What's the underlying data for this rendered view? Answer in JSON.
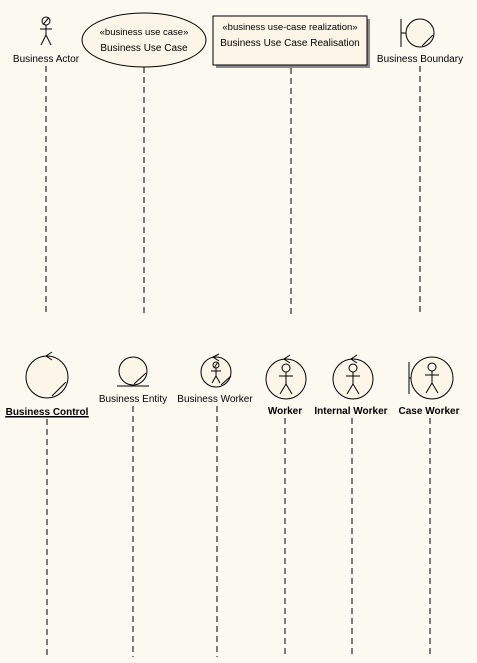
{
  "colors": {
    "background": "#fcf9f0",
    "fill": "#fdf6e8",
    "line": "#000000"
  },
  "lifelines": [
    {
      "id": "business-actor",
      "label": "Business Actor",
      "icon": "business-actor-icon"
    },
    {
      "id": "business-use-case",
      "label": "Business Use Case",
      "stereotype": "«business use case»",
      "icon": "use-case-ellipse"
    },
    {
      "id": "business-use-case-realisation",
      "label": "Business Use Case Realisation",
      "stereotype": "«business use-case realization»",
      "icon": "realization-box"
    },
    {
      "id": "business-boundary",
      "label": "Business Boundary",
      "icon": "business-boundary-icon"
    },
    {
      "id": "business-control",
      "label": "Business Control",
      "icon": "business-control-icon"
    },
    {
      "id": "business-entity",
      "label": "Business Entity",
      "icon": "business-entity-icon"
    },
    {
      "id": "business-worker",
      "label": "Business Worker",
      "icon": "business-worker-icon"
    },
    {
      "id": "worker",
      "label": "Worker",
      "icon": "worker-icon"
    },
    {
      "id": "internal-worker",
      "label": "Internal Worker",
      "icon": "internal-worker-icon"
    },
    {
      "id": "case-worker",
      "label": "Case Worker",
      "icon": "case-worker-icon"
    }
  ]
}
